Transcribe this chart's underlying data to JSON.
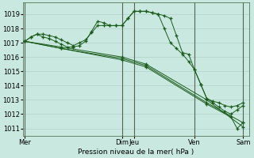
{
  "background_color": "#c8e8d8",
  "plot_bg": "#c8e8e0",
  "grid_color": "#b0d0c8",
  "line_color": "#1a5c1a",
  "marker_color": "#1a5c1a",
  "ylabel_text": "Pression niveau de la mer( hPa )",
  "ylim": [
    1010.5,
    1019.8
  ],
  "yticks": [
    1011,
    1012,
    1013,
    1014,
    1015,
    1016,
    1017,
    1018,
    1019
  ],
  "xlim": [
    -2,
    222
  ],
  "vline_color": "#556655",
  "series": [
    {
      "x": [
        0,
        6,
        12,
        18,
        24,
        30,
        36,
        42,
        48,
        54,
        60,
        66,
        72,
        78,
        84,
        90,
        96,
        102,
        108,
        114,
        120,
        126,
        132,
        138,
        144,
        150,
        156,
        162,
        168,
        174,
        180,
        186,
        192,
        198,
        204,
        210,
        216
      ],
      "y": [
        1017.1,
        1017.4,
        1017.6,
        1017.6,
        1017.5,
        1017.4,
        1017.2,
        1017.0,
        1016.8,
        1017.0,
        1017.2,
        1017.7,
        1018.2,
        1018.2,
        1018.2,
        1018.2,
        1018.2,
        1018.7,
        1019.2,
        1019.2,
        1019.2,
        1019.1,
        1019.0,
        1018.9,
        1018.7,
        1017.5,
        1016.3,
        1016.2,
        1015.1,
        1014.1,
        1013.1,
        1012.9,
        1012.8,
        1012.6,
        1012.5,
        1012.6,
        1012.8
      ]
    },
    {
      "x": [
        0,
        6,
        12,
        18,
        24,
        30,
        36,
        42,
        48,
        54,
        60,
        66,
        72,
        78,
        84,
        90,
        96,
        102,
        108,
        114,
        120,
        126,
        132,
        138,
        144,
        150,
        156,
        162,
        168,
        174,
        180,
        186,
        192,
        198,
        204,
        210,
        216
      ],
      "y": [
        1017.1,
        1017.4,
        1017.6,
        1017.4,
        1017.3,
        1017.1,
        1016.9,
        1016.7,
        1016.7,
        1016.8,
        1017.1,
        1017.8,
        1018.5,
        1018.4,
        1018.2,
        1018.2,
        1018.2,
        1018.7,
        1019.2,
        1019.2,
        1019.2,
        1019.1,
        1019.0,
        1018.0,
        1017.0,
        1016.6,
        1016.2,
        1015.7,
        1015.1,
        1014.1,
        1013.1,
        1012.8,
        1012.5,
        1012.2,
        1012.0,
        1012.3,
        1012.6
      ]
    },
    {
      "x": [
        0,
        36,
        96,
        120,
        180,
        216
      ],
      "y": [
        1017.1,
        1016.7,
        1016.0,
        1015.5,
        1013.0,
        1011.1
      ]
    },
    {
      "x": [
        0,
        36,
        96,
        120,
        180,
        216
      ],
      "y": [
        1017.1,
        1016.6,
        1015.9,
        1015.4,
        1012.8,
        1011.4
      ]
    },
    {
      "x": [
        0,
        36,
        96,
        120,
        180,
        204,
        210,
        216
      ],
      "y": [
        1017.1,
        1016.6,
        1015.8,
        1015.3,
        1012.7,
        1011.8,
        1011.0,
        1011.4
      ]
    }
  ],
  "vlines": [
    0,
    96,
    108,
    168,
    216
  ],
  "xtick_positions": [
    0,
    96,
    108,
    168,
    216
  ],
  "xtick_labels": [
    "Mer",
    "Dim",
    "Jeu",
    "Ven",
    "Sam"
  ]
}
